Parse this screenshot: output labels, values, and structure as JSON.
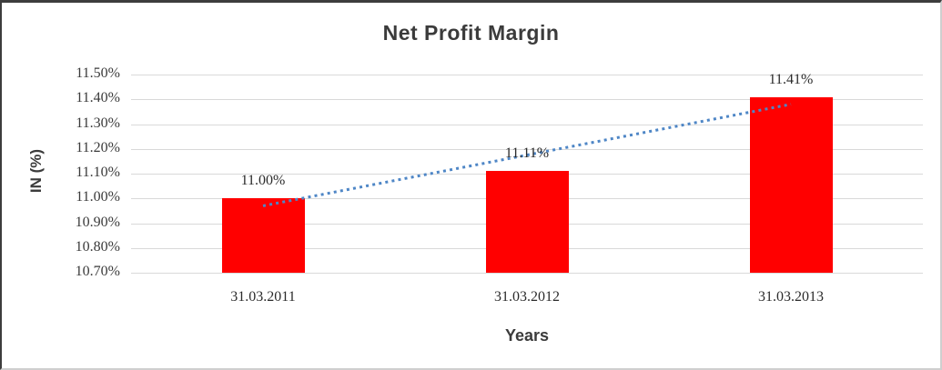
{
  "window": {
    "background": "#ffffff",
    "border_top_left_color": "#3d3d3d",
    "border_bottom_right_color": "#cfcfcf"
  },
  "chart_data": {
    "type": "bar",
    "title": "Net Profit Margin",
    "categories": [
      "31.03.2011",
      "31.03.2012",
      "31.03.2013"
    ],
    "values": [
      11.0,
      11.11,
      11.41
    ],
    "value_labels": [
      "11.00%",
      "11.11%",
      "11.41%"
    ],
    "xlabel": "Years",
    "ylabel": "IN (%)",
    "ylim": [
      10.7,
      11.5
    ],
    "ytick_step": 0.1,
    "ytick_labels": [
      "11.50%",
      "11.40%",
      "11.30%",
      "11.20%",
      "11.10%",
      "11.00%",
      "10.90%",
      "10.80%",
      "10.70%"
    ],
    "grid": true,
    "legend": "none",
    "bar_color": "#ff0000",
    "grid_color": "#d9d9d9",
    "text_color": "#3b3b3b",
    "trendline": {
      "type": "linear",
      "style": "dotted",
      "color": "#4e86c6",
      "start_value": 10.97,
      "end_value": 11.38
    }
  }
}
